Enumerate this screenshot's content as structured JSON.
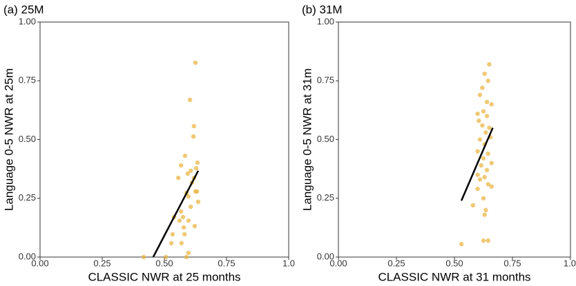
{
  "chart_data": [
    {
      "type": "scatter",
      "title": "(a) 25M",
      "x_label": "CLASSIC NWR at 25 months",
      "y_label": "Language 0-5 NWR at 25m",
      "color": "#e8b23a",
      "x": [
        0.625,
        0.603,
        0.619,
        0.617,
        0.583,
        0.633,
        0.567,
        0.628,
        0.606,
        0.594,
        0.556,
        0.619,
        0.611,
        0.631,
        0.625,
        0.589,
        0.597,
        0.636,
        0.606,
        0.567,
        0.539,
        0.575,
        0.561,
        0.597,
        0.622,
        0.578,
        0.581,
        0.533,
        0.569,
        0.528,
        0.597,
        0.506,
        0.417,
        0.589
      ],
      "y": [
        0.827,
        0.669,
        0.557,
        0.513,
        0.431,
        0.402,
        0.39,
        0.378,
        0.367,
        0.355,
        0.337,
        0.337,
        0.317,
        0.279,
        0.279,
        0.273,
        0.258,
        0.235,
        0.214,
        0.194,
        0.17,
        0.17,
        0.155,
        0.155,
        0.132,
        0.126,
        0.097,
        0.097,
        0.059,
        0.059,
        0.018,
        0.0,
        0.0,
        0.0
      ],
      "fit_line": {
        "x": [
          0.455,
          0.636
        ],
        "y": [
          0.0,
          0.367
        ],
        "color": "#000000"
      },
      "xlim": [
        0,
        1
      ],
      "ylim": [
        0,
        1
      ],
      "xticks": [
        {
          "value": 0,
          "label": "0.00"
        },
        {
          "value": 0.25,
          "label": "0.25"
        },
        {
          "value": 0.5,
          "label": "0.50"
        },
        {
          "value": 0.75,
          "label": "0.75"
        },
        {
          "value": 1,
          "label": "1.0"
        }
      ],
      "yticks": [
        {
          "value": 0,
          "label": "0.00"
        },
        {
          "value": 0.25,
          "label": "0.25"
        },
        {
          "value": 0.5,
          "label": "0.50"
        },
        {
          "value": 0.75,
          "label": "0.75"
        },
        {
          "value": 1,
          "label": "1.00"
        }
      ]
    },
    {
      "type": "scatter",
      "title": "(b) 31M",
      "x_label": "CLASSIC NWR at 31 months",
      "y_label": "Language 0-5 NWR at 31m",
      "color": "#e8b23a",
      "x": [
        0.65,
        0.63,
        0.645,
        0.62,
        0.61,
        0.64,
        0.66,
        0.625,
        0.6,
        0.64,
        0.605,
        0.62,
        0.65,
        0.635,
        0.655,
        0.61,
        0.63,
        0.6,
        0.645,
        0.625,
        0.66,
        0.615,
        0.64,
        0.6,
        0.63,
        0.61,
        0.645,
        0.66,
        0.6,
        0.625,
        0.58,
        0.635,
        0.63,
        0.625,
        0.645,
        0.53
      ],
      "y": [
        0.82,
        0.78,
        0.75,
        0.72,
        0.69,
        0.66,
        0.65,
        0.62,
        0.61,
        0.6,
        0.58,
        0.56,
        0.55,
        0.53,
        0.51,
        0.5,
        0.48,
        0.45,
        0.44,
        0.42,
        0.4,
        0.39,
        0.37,
        0.35,
        0.34,
        0.33,
        0.31,
        0.3,
        0.29,
        0.25,
        0.22,
        0.2,
        0.18,
        0.07,
        0.07,
        0.055
      ],
      "fit_line": {
        "x": [
          0.53,
          0.665
        ],
        "y": [
          0.24,
          0.55
        ],
        "color": "#000000"
      },
      "xlim": [
        0,
        1
      ],
      "ylim": [
        0,
        1
      ],
      "xticks": [
        {
          "value": 0,
          "label": "0.00"
        },
        {
          "value": 0.25,
          "label": "0.25"
        },
        {
          "value": 0.5,
          "label": "0.50"
        },
        {
          "value": 0.75,
          "label": "0.75"
        },
        {
          "value": 1,
          "label": "1.0"
        }
      ],
      "yticks": [
        {
          "value": 0,
          "label": "0.00"
        },
        {
          "value": 0.25,
          "label": "0.25"
        },
        {
          "value": 0.5,
          "label": "0.50"
        },
        {
          "value": 0.75,
          "label": "0.75"
        },
        {
          "value": 1,
          "label": "1.00"
        }
      ]
    }
  ]
}
